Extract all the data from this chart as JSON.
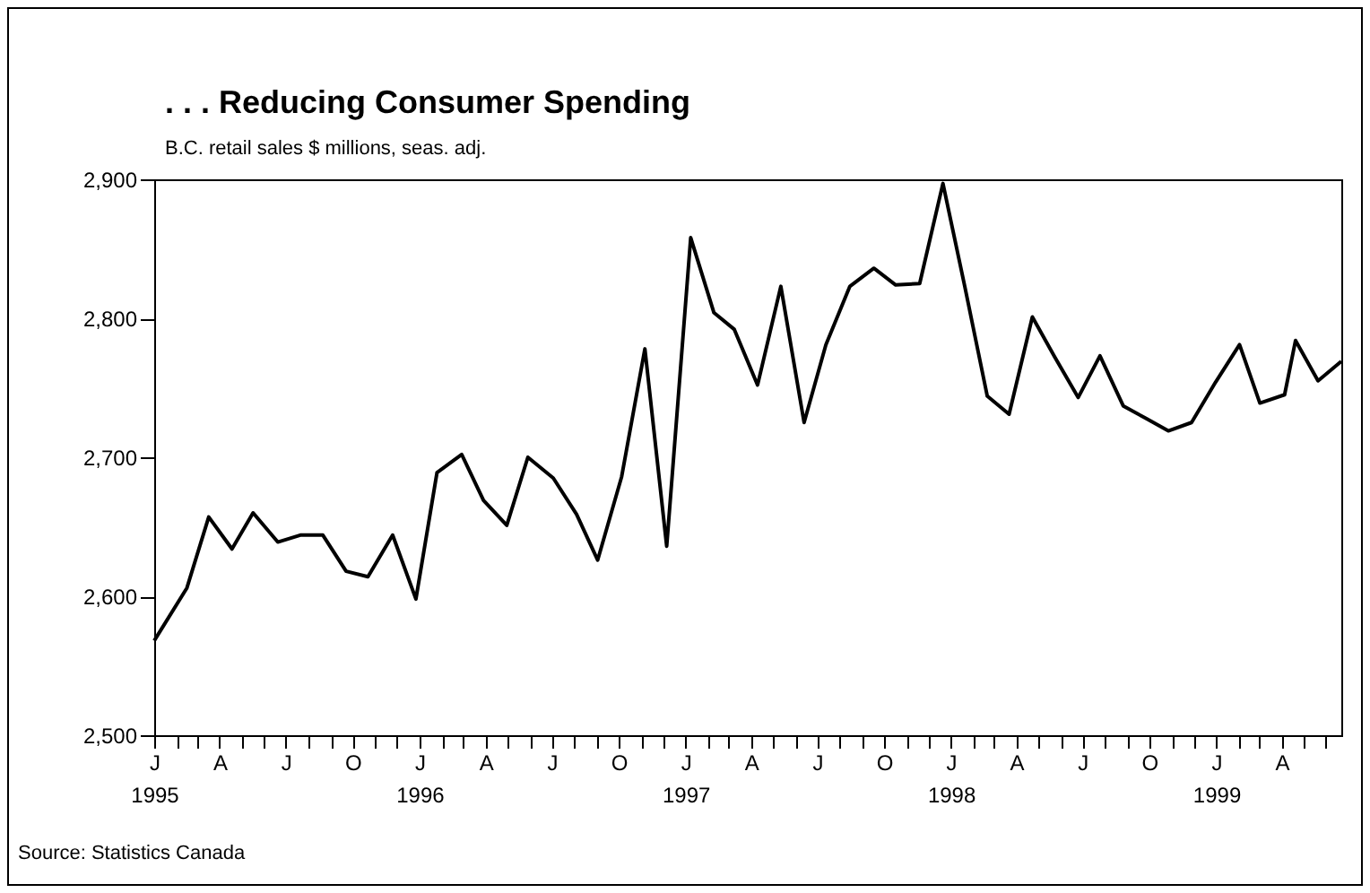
{
  "chart_data": {
    "type": "line",
    "title": ". . . Reducing Consumer Spending",
    "subtitle": "B.C. retail sales $ millions, seas. adj.",
    "annotations": [
      "Source: Statistics Canada"
    ],
    "x": [
      "1995-01-01",
      "1995-02-15",
      "1995-03-17",
      "1995-04-18",
      "1995-05-17",
      "1995-06-20",
      "1995-07-21",
      "1995-08-21",
      "1995-09-22",
      "1995-10-22",
      "1995-11-25",
      "1995-12-27",
      "1996-01-25",
      "1996-02-28",
      "1996-03-29",
      "1996-04-30",
      "1996-05-29",
      "1996-07-03",
      "1996-08-04",
      "1996-09-02",
      "1996-10-05",
      "1996-11-06",
      "1996-12-06",
      "1997-01-08",
      "1997-02-09",
      "1997-03-09",
      "1997-04-10",
      "1997-05-12",
      "1997-06-13",
      "1997-07-13",
      "1997-08-15",
      "1997-09-17",
      "1997-10-17",
      "1997-11-19",
      "1997-12-21",
      "1998-01-20",
      "1998-02-20",
      "1998-03-22",
      "1998-04-23",
      "1998-05-24",
      "1998-06-25",
      "1998-07-25",
      "1998-08-26",
      "1998-09-26",
      "1998-10-27",
      "1998-11-28",
      "1998-12-31",
      "1999-02-02",
      "1999-03-02",
      "1999-04-05",
      "1999-04-20",
      "1999-05-21",
      "1999-06-22"
    ],
    "series": [
      {
        "color": "#000000",
        "values": [
          2568,
          2606,
          2657,
          2634,
          2660,
          2639,
          2644,
          2644,
          2618,
          2614,
          2644,
          2598,
          2689,
          2702,
          2669,
          2651,
          2700,
          2685,
          2659,
          2626,
          2686,
          2778,
          2636,
          2858,
          2804,
          2792,
          2752,
          2823,
          2725,
          2781,
          2823,
          2836,
          2824,
          2825,
          2897,
          2823,
          2744,
          2731,
          2801,
          2772,
          2743,
          2773,
          2737,
          2728,
          2719,
          2725,
          2754,
          2781,
          2739,
          2745,
          2784,
          2755,
          2769
        ]
      }
    ],
    "xlim": [
      "1995-01-01",
      "1999-06-22"
    ],
    "xticks": [
      {
        "value": "1995-01-01",
        "label": "J\n1995"
      },
      {
        "value": "1995-02-01",
        "label": null
      },
      {
        "value": "1995-03-01",
        "label": null
      },
      {
        "value": "1995-04-01",
        "label": "A"
      },
      {
        "value": "1995-05-01",
        "label": null
      },
      {
        "value": "1995-06-01",
        "label": null
      },
      {
        "value": "1995-07-01",
        "label": "J"
      },
      {
        "value": "1995-08-01",
        "label": null
      },
      {
        "value": "1995-09-01",
        "label": null
      },
      {
        "value": "1995-10-01",
        "label": "O"
      },
      {
        "value": "1995-11-01",
        "label": null
      },
      {
        "value": "1995-12-01",
        "label": null
      },
      {
        "value": "1996-01-01",
        "label": "J\n1996"
      },
      {
        "value": "1996-02-01",
        "label": null
      },
      {
        "value": "1996-03-01",
        "label": null
      },
      {
        "value": "1996-04-01",
        "label": "A"
      },
      {
        "value": "1996-05-01",
        "label": null
      },
      {
        "value": "1996-06-01",
        "label": null
      },
      {
        "value": "1996-07-01",
        "label": "J"
      },
      {
        "value": "1996-08-01",
        "label": null
      },
      {
        "value": "1996-09-01",
        "label": null
      },
      {
        "value": "1996-10-01",
        "label": "O"
      },
      {
        "value": "1996-11-01",
        "label": null
      },
      {
        "value": "1996-12-01",
        "label": null
      },
      {
        "value": "1997-01-01",
        "label": "J\n1997"
      },
      {
        "value": "1997-02-01",
        "label": null
      },
      {
        "value": "1997-03-01",
        "label": null
      },
      {
        "value": "1997-04-01",
        "label": "A"
      },
      {
        "value": "1997-05-01",
        "label": null
      },
      {
        "value": "1997-06-01",
        "label": null
      },
      {
        "value": "1997-07-01",
        "label": "J"
      },
      {
        "value": "1997-08-01",
        "label": null
      },
      {
        "value": "1997-09-01",
        "label": null
      },
      {
        "value": "1997-10-01",
        "label": "O"
      },
      {
        "value": "1997-11-01",
        "label": null
      },
      {
        "value": "1997-12-01",
        "label": null
      },
      {
        "value": "1998-01-01",
        "label": "J\n1998"
      },
      {
        "value": "1998-02-01",
        "label": null
      },
      {
        "value": "1998-03-01",
        "label": null
      },
      {
        "value": "1998-04-01",
        "label": "A"
      },
      {
        "value": "1998-05-01",
        "label": null
      },
      {
        "value": "1998-06-01",
        "label": null
      },
      {
        "value": "1998-07-01",
        "label": "J"
      },
      {
        "value": "1998-08-01",
        "label": null
      },
      {
        "value": "1998-09-01",
        "label": null
      },
      {
        "value": "1998-10-01",
        "label": "O"
      },
      {
        "value": "1998-11-01",
        "label": null
      },
      {
        "value": "1998-12-01",
        "label": null
      },
      {
        "value": "1999-01-01",
        "label": "J\n1999"
      },
      {
        "value": "1999-02-01",
        "label": null
      },
      {
        "value": "1999-03-01",
        "label": null
      },
      {
        "value": "1999-04-01",
        "label": "A"
      },
      {
        "value": "1999-05-01",
        "label": null
      },
      {
        "value": "1999-06-01",
        "label": null
      }
    ],
    "ylim": [
      2500,
      2900
    ],
    "yticks": [
      {
        "value": 2500,
        "label": "2,500"
      },
      {
        "value": 2600,
        "label": "2,600"
      },
      {
        "value": 2700,
        "label": "2,700"
      },
      {
        "value": 2800,
        "label": "2,800"
      },
      {
        "value": 2900,
        "label": "2,900"
      }
    ],
    "grid": false,
    "legend": false,
    "line_style": "solid"
  }
}
